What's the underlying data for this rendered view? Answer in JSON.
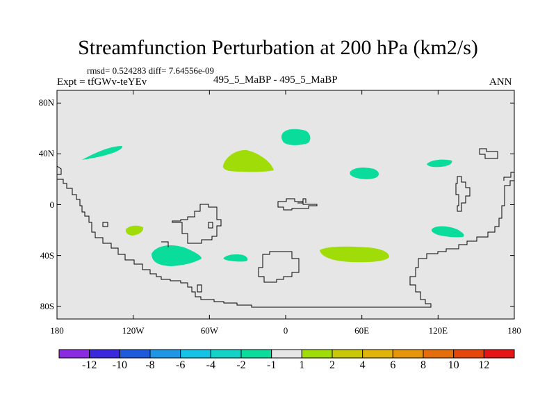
{
  "title": "Streamfunction Perturbation at 200 hPa (km2/s)",
  "stats_line": "rmsd= 0.524283 diff= 7.64556e-09",
  "left_label": "Expt = tfGWv-teYEv",
  "center_label": "495_5_MaBP - 495_5_MaBP",
  "right_label": "ANN",
  "map": {
    "projection": "cylindrical-equidistant",
    "background_color": "#e6e6e6",
    "coastline_color": "#000000",
    "lat_ticks": [
      {
        "value": 80,
        "label": "80N"
      },
      {
        "value": 40,
        "label": "40N"
      },
      {
        "value": 0,
        "label": "0"
      },
      {
        "value": -40,
        "label": "40S"
      },
      {
        "value": -80,
        "label": "80S"
      }
    ],
    "lon_ticks": [
      {
        "value": -180,
        "label": "180"
      },
      {
        "value": -120,
        "label": "120W"
      },
      {
        "value": -60,
        "label": "60W"
      },
      {
        "value": 0,
        "label": "0"
      },
      {
        "value": 60,
        "label": "60E"
      },
      {
        "value": 120,
        "label": "120E"
      },
      {
        "value": 180,
        "label": "180"
      }
    ],
    "anomaly_patches": [
      {
        "name": "patch-nw-pacific-negative",
        "lon": -145,
        "lat": 42,
        "sign": "negative",
        "color": "#0adc9b"
      },
      {
        "name": "patch-north-atlantic-positive",
        "lon": -28,
        "lat": 35,
        "sign": "positive",
        "color": "#a0dc08"
      },
      {
        "name": "patch-europe-negative",
        "lon": 8,
        "lat": 53,
        "sign": "negative",
        "color": "#0adc9b"
      },
      {
        "name": "patch-central-asia-negative",
        "lon": 62,
        "lat": 25,
        "sign": "negative",
        "color": "#0adc9b"
      },
      {
        "name": "patch-east-asia-negative",
        "lon": 120,
        "lat": 33,
        "sign": "negative",
        "color": "#0adc9b"
      },
      {
        "name": "patch-tropical-pacific-positive",
        "lon": -120,
        "lat": -20,
        "sign": "positive",
        "color": "#a0dc08"
      },
      {
        "name": "patch-south-pacific-negative",
        "lon": -87,
        "lat": -40,
        "sign": "negative",
        "color": "#0adc9b"
      },
      {
        "name": "patch-south-atlantic-negative",
        "lon": -38,
        "lat": -42,
        "sign": "negative",
        "color": "#0adc9b"
      },
      {
        "name": "patch-indian-ocean-positive",
        "lon": 62,
        "lat": -40,
        "sign": "positive",
        "color": "#a0dc08"
      },
      {
        "name": "patch-australia-negative",
        "lon": 128,
        "lat": -20,
        "sign": "negative",
        "color": "#0adc9b"
      }
    ]
  },
  "colorbar": {
    "colors": [
      "#8a2be2",
      "#3c28dc",
      "#1e5adc",
      "#1e96e6",
      "#14c3e6",
      "#14d2c8",
      "#0adc9b",
      "#e6e6e6",
      "#a0dc08",
      "#c8c808",
      "#e1b40a",
      "#e6960a",
      "#e66e0a",
      "#e6460a",
      "#e61414"
    ],
    "labels": [
      "-12",
      "-10",
      "-8",
      "-6",
      "-4",
      "-2",
      "-1",
      "1",
      "2",
      "4",
      "6",
      "8",
      "10",
      "12"
    ]
  }
}
